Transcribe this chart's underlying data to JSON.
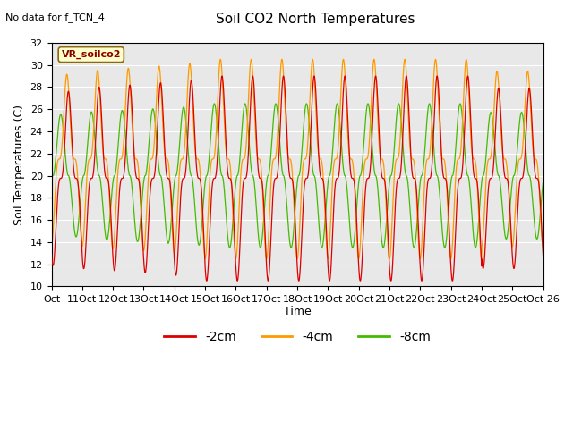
{
  "title": "Soil CO2 North Temperatures",
  "top_left_annotation": "No data for f_TCN_4",
  "plot_label": "VR_soilco2",
  "ylabel": "Soil Temperatures (C)",
  "xlabel": "Time",
  "ylim": [
    10,
    32
  ],
  "bg_color": "#e8e8e8",
  "legend": [
    {
      "label": "-2cm",
      "color": "#dd0000"
    },
    {
      "label": "-4cm",
      "color": "#ff9900"
    },
    {
      "label": "-8cm",
      "color": "#44bb00"
    }
  ],
  "tick_labels": [
    "Oct",
    "11Oct",
    "12Oct",
    "13Oct",
    "14Oct",
    "15Oct",
    "16Oct",
    "17Oct",
    "18Oct",
    "19Oct",
    "20Oct",
    "21Oct",
    "22Oct",
    "23Oct",
    "24Oct",
    "25Oct",
    "Oct 26"
  ],
  "n_points": 2000,
  "n_days": 16,
  "figsize": [
    6.4,
    4.8
  ],
  "dpi": 100
}
